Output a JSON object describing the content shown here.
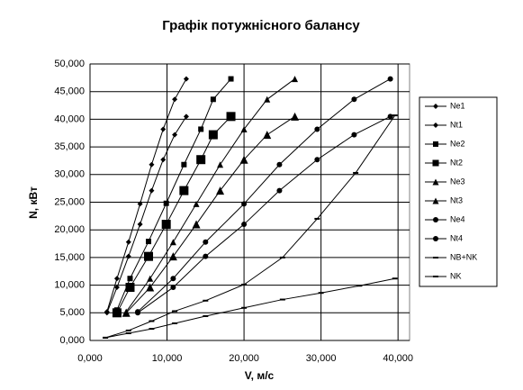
{
  "chart_data": {
    "type": "scatter-line",
    "title": "Графік потужнісного балансу",
    "x_label": "V, м/с",
    "y_label": "N, кВт",
    "xlim": [
      0,
      41.5
    ],
    "ylim": [
      0,
      50
    ],
    "xticks": [
      {
        "value": 0,
        "label": "0,000"
      },
      {
        "value": 10,
        "label": "10,000"
      },
      {
        "value": 20,
        "label": "20,000"
      },
      {
        "value": 30,
        "label": "30,000"
      },
      {
        "value": 40,
        "label": "40,000"
      }
    ],
    "yticks": [
      {
        "value": 0,
        "label": "0,000"
      },
      {
        "value": 5,
        "label": "5,000"
      },
      {
        "value": 10,
        "label": "10,000"
      },
      {
        "value": 15,
        "label": "15,000"
      },
      {
        "value": 20,
        "label": "20,000"
      },
      {
        "value": 25,
        "label": "25,000"
      },
      {
        "value": 30,
        "label": "30,000"
      },
      {
        "value": 35,
        "label": "35,000"
      },
      {
        "value": 40,
        "label": "40,000"
      },
      {
        "value": 45,
        "label": "45,000"
      },
      {
        "value": 50,
        "label": "50,000"
      }
    ],
    "grid": true,
    "legend": "right",
    "series": [
      {
        "name": "Ne1",
        "color": "#000000",
        "marker": "diamond",
        "marker_size": 6,
        "x": [
          2.2,
          3.5,
          5.0,
          6.5,
          8.0,
          9.5,
          11.0,
          12.5
        ],
        "values": [
          5.2,
          11.2,
          17.8,
          24.7,
          31.8,
          38.2,
          43.6,
          47.3
        ]
      },
      {
        "name": "Nt1",
        "color": "#000000",
        "marker": "diamond",
        "marker_size": 6,
        "x": [
          2.2,
          3.5,
          5.0,
          6.5,
          8.0,
          9.5,
          11.0,
          12.5
        ],
        "values": [
          5.0,
          9.6,
          15.2,
          21.0,
          27.1,
          32.7,
          37.2,
          40.5
        ]
      },
      {
        "name": "Ne2",
        "color": "#000000",
        "marker": "square",
        "marker_size": 6,
        "x": [
          3.5,
          5.2,
          7.6,
          9.9,
          12.2,
          14.4,
          16.0,
          18.3
        ],
        "values": [
          5.5,
          11.2,
          17.9,
          24.8,
          31.8,
          38.2,
          43.6,
          47.3
        ]
      },
      {
        "name": "Nt2",
        "color": "#000000",
        "marker": "square",
        "marker_size": 10,
        "x": [
          3.5,
          5.2,
          7.6,
          9.9,
          12.2,
          14.4,
          16.0,
          18.3
        ],
        "values": [
          5.0,
          9.6,
          15.2,
          21.0,
          27.1,
          32.7,
          37.2,
          40.5
        ]
      },
      {
        "name": "Ne3",
        "color": "#000000",
        "marker": "triangle",
        "marker_size": 7,
        "x": [
          4.7,
          7.8,
          10.8,
          13.8,
          16.9,
          20.0,
          23.0,
          26.6
        ],
        "values": [
          5.2,
          11.2,
          17.8,
          24.7,
          31.8,
          38.2,
          43.6,
          47.3
        ]
      },
      {
        "name": "Nt3",
        "color": "#000000",
        "marker": "triangle",
        "marker_size": 9,
        "x": [
          4.7,
          7.8,
          10.8,
          13.8,
          16.9,
          20.0,
          23.0,
          26.6
        ],
        "values": [
          5.0,
          9.6,
          15.2,
          21.0,
          27.1,
          32.7,
          37.2,
          40.5
        ]
      },
      {
        "name": "Ne4",
        "color": "#000000",
        "marker": "circle",
        "marker_size": 6,
        "x": [
          6.2,
          10.8,
          15.0,
          20.0,
          24.6,
          29.5,
          34.3,
          39.0
        ],
        "values": [
          5.2,
          11.2,
          17.8,
          24.7,
          31.8,
          38.2,
          43.6,
          47.3
        ]
      },
      {
        "name": "Nt4",
        "color": "#000000",
        "marker": "circle",
        "marker_size": 6,
        "x": [
          6.2,
          10.8,
          15.0,
          20.0,
          24.6,
          29.5,
          34.3,
          39.0
        ],
        "values": [
          5.0,
          9.6,
          15.2,
          21.0,
          27.1,
          32.7,
          37.2,
          40.5
        ]
      },
      {
        "name": "NB+NK",
        "color": "#000000",
        "marker": "dash",
        "marker_size": 6,
        "x": [
          2,
          5,
          8,
          11,
          15,
          20,
          25,
          29.5,
          34.5,
          39.6
        ],
        "values": [
          0.5,
          1.8,
          3.5,
          5.3,
          7.2,
          10.1,
          15.0,
          22.0,
          30.3,
          40.7
        ]
      },
      {
        "name": "NK",
        "color": "#000000",
        "marker": "dash",
        "marker_size": 6,
        "x": [
          2,
          5,
          8,
          11,
          15,
          20,
          25,
          30,
          35,
          39.6
        ],
        "values": [
          0.5,
          1.3,
          2.1,
          3.1,
          4.4,
          5.9,
          7.4,
          8.6,
          9.9,
          11.2
        ]
      }
    ]
  }
}
